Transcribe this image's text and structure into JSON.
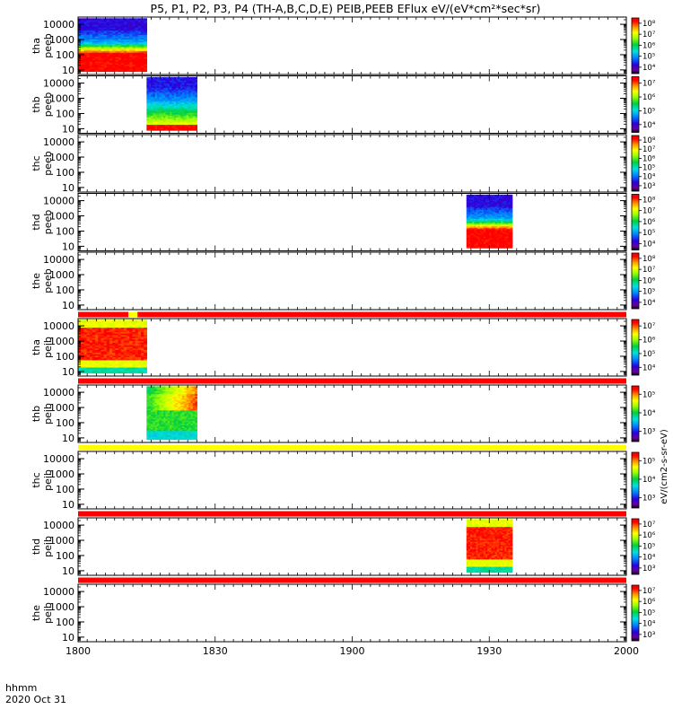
{
  "chart_data": {
    "type": "heatmap",
    "title": "P5, P1, P2, P3, P4 (TH-A,B,C,D,E) PEIB,PEEB EFlux eV/(eV*cm²*sec*sr)",
    "x_axis": {
      "start_label": "1800",
      "end_label": "2000",
      "tick_labels": [
        "1800",
        "1830",
        "1900",
        "1930",
        "2000"
      ],
      "tick_values_min": [
        0,
        30,
        60,
        90,
        120
      ],
      "range_min": [
        0,
        120
      ],
      "format_label": "hhmm",
      "date_label": "2020 Oct 31"
    },
    "y_axis_scale": "log",
    "y_tick_labels": [
      "10",
      "100",
      "1000",
      "10000"
    ],
    "y_tick_values": [
      10,
      100,
      1000,
      10000
    ],
    "colorbar_label": "eV/(cm2-s-sr-eV)",
    "panels": [
      {
        "id": "tha_peeb",
        "label": [
          "tha",
          "peeb"
        ],
        "cb_ticks": [
          "10⁴",
          "10⁵",
          "10⁶",
          "10⁷",
          "10⁸"
        ],
        "cb_exponents": [
          4,
          5,
          6,
          7,
          8
        ],
        "interval_min": [
          0,
          15
        ],
        "data_ylim": [
          8,
          25000
        ],
        "color_profile": "electron-high",
        "strip": null
      },
      {
        "id": "thb_peeb",
        "label": [
          "thb",
          "peeb"
        ],
        "cb_ticks": [
          "10⁴",
          "10⁵",
          "10⁶",
          "10⁷"
        ],
        "cb_exponents": [
          4,
          5,
          6,
          7
        ],
        "interval_min": [
          15,
          26
        ],
        "data_ylim": [
          8,
          25000
        ],
        "color_profile": "electron-mid",
        "strip": null
      },
      {
        "id": "thc_peeb",
        "label": [
          "thc",
          "peeb"
        ],
        "cb_ticks": [
          "10³",
          "10⁴",
          "10⁵",
          "10⁶",
          "10⁷",
          "10⁸"
        ],
        "cb_exponents": [
          3,
          4,
          5,
          6,
          7,
          8
        ],
        "interval_min": null,
        "data_ylim": null,
        "color_profile": null,
        "strip": null
      },
      {
        "id": "thd_peeb",
        "label": [
          "thd",
          "peeb"
        ],
        "cb_ticks": [
          "10⁴",
          "10⁵",
          "10⁶",
          "10⁷",
          "10⁸"
        ],
        "cb_exponents": [
          4,
          5,
          6,
          7,
          8
        ],
        "interval_min": [
          85,
          95
        ],
        "data_ylim": [
          8,
          25000
        ],
        "color_profile": "electron-high",
        "strip": null
      },
      {
        "id": "the_peeb",
        "label": [
          "the",
          "peeb"
        ],
        "cb_ticks": [
          "10⁴",
          "10⁵",
          "10⁶",
          "10⁷",
          "10⁸"
        ],
        "cb_exponents": [
          4,
          5,
          6,
          7,
          8
        ],
        "interval_min": null,
        "data_ylim": null,
        "color_profile": null,
        "strip": "red-yellow"
      },
      {
        "id": "tha_peib",
        "label": [
          "tha",
          "peib"
        ],
        "cb_ticks": [
          "10⁴",
          "10⁵",
          "10⁶",
          "10⁷"
        ],
        "cb_exponents": [
          4,
          5,
          6,
          7
        ],
        "interval_min": [
          0,
          15
        ],
        "data_ylim": [
          8,
          25000
        ],
        "color_profile": "ion-red",
        "strip": "red"
      },
      {
        "id": "thb_peib",
        "label": [
          "thb",
          "peib"
        ],
        "cb_ticks": [
          "10³",
          "10⁴",
          "10⁵"
        ],
        "cb_exponents": [
          3,
          4,
          5
        ],
        "interval_min": [
          15,
          26
        ],
        "data_ylim": [
          8,
          25000
        ],
        "color_profile": "ion-green",
        "strip": "yellow"
      },
      {
        "id": "thc_peib",
        "label": [
          "thc",
          "peib"
        ],
        "cb_ticks": [
          "10³",
          "10⁴",
          "10⁵"
        ],
        "cb_exponents": [
          3,
          4,
          5
        ],
        "interval_min": null,
        "data_ylim": null,
        "color_profile": null,
        "strip": "red"
      },
      {
        "id": "thd_peib",
        "label": [
          "thd",
          "peib"
        ],
        "cb_ticks": [
          "10³",
          "10⁴",
          "10⁵",
          "10⁶",
          "10⁷"
        ],
        "cb_exponents": [
          3,
          4,
          5,
          6,
          7
        ],
        "interval_min": [
          85,
          95
        ],
        "data_ylim": [
          8,
          25000
        ],
        "color_profile": "ion-red",
        "strip": "red"
      },
      {
        "id": "the_peib",
        "label": [
          "the",
          "peib"
        ],
        "cb_ticks": [
          "10³",
          "10⁴",
          "10⁵",
          "10⁶",
          "10⁷"
        ],
        "cb_exponents": [
          3,
          4,
          5,
          6,
          7
        ],
        "interval_min": null,
        "data_ylim": null,
        "color_profile": null,
        "strip": null
      }
    ],
    "colors": {
      "strip_red": "#ff0000",
      "strip_yellow": "#ffff00",
      "frame": "#000000",
      "background": "#ffffff"
    }
  }
}
